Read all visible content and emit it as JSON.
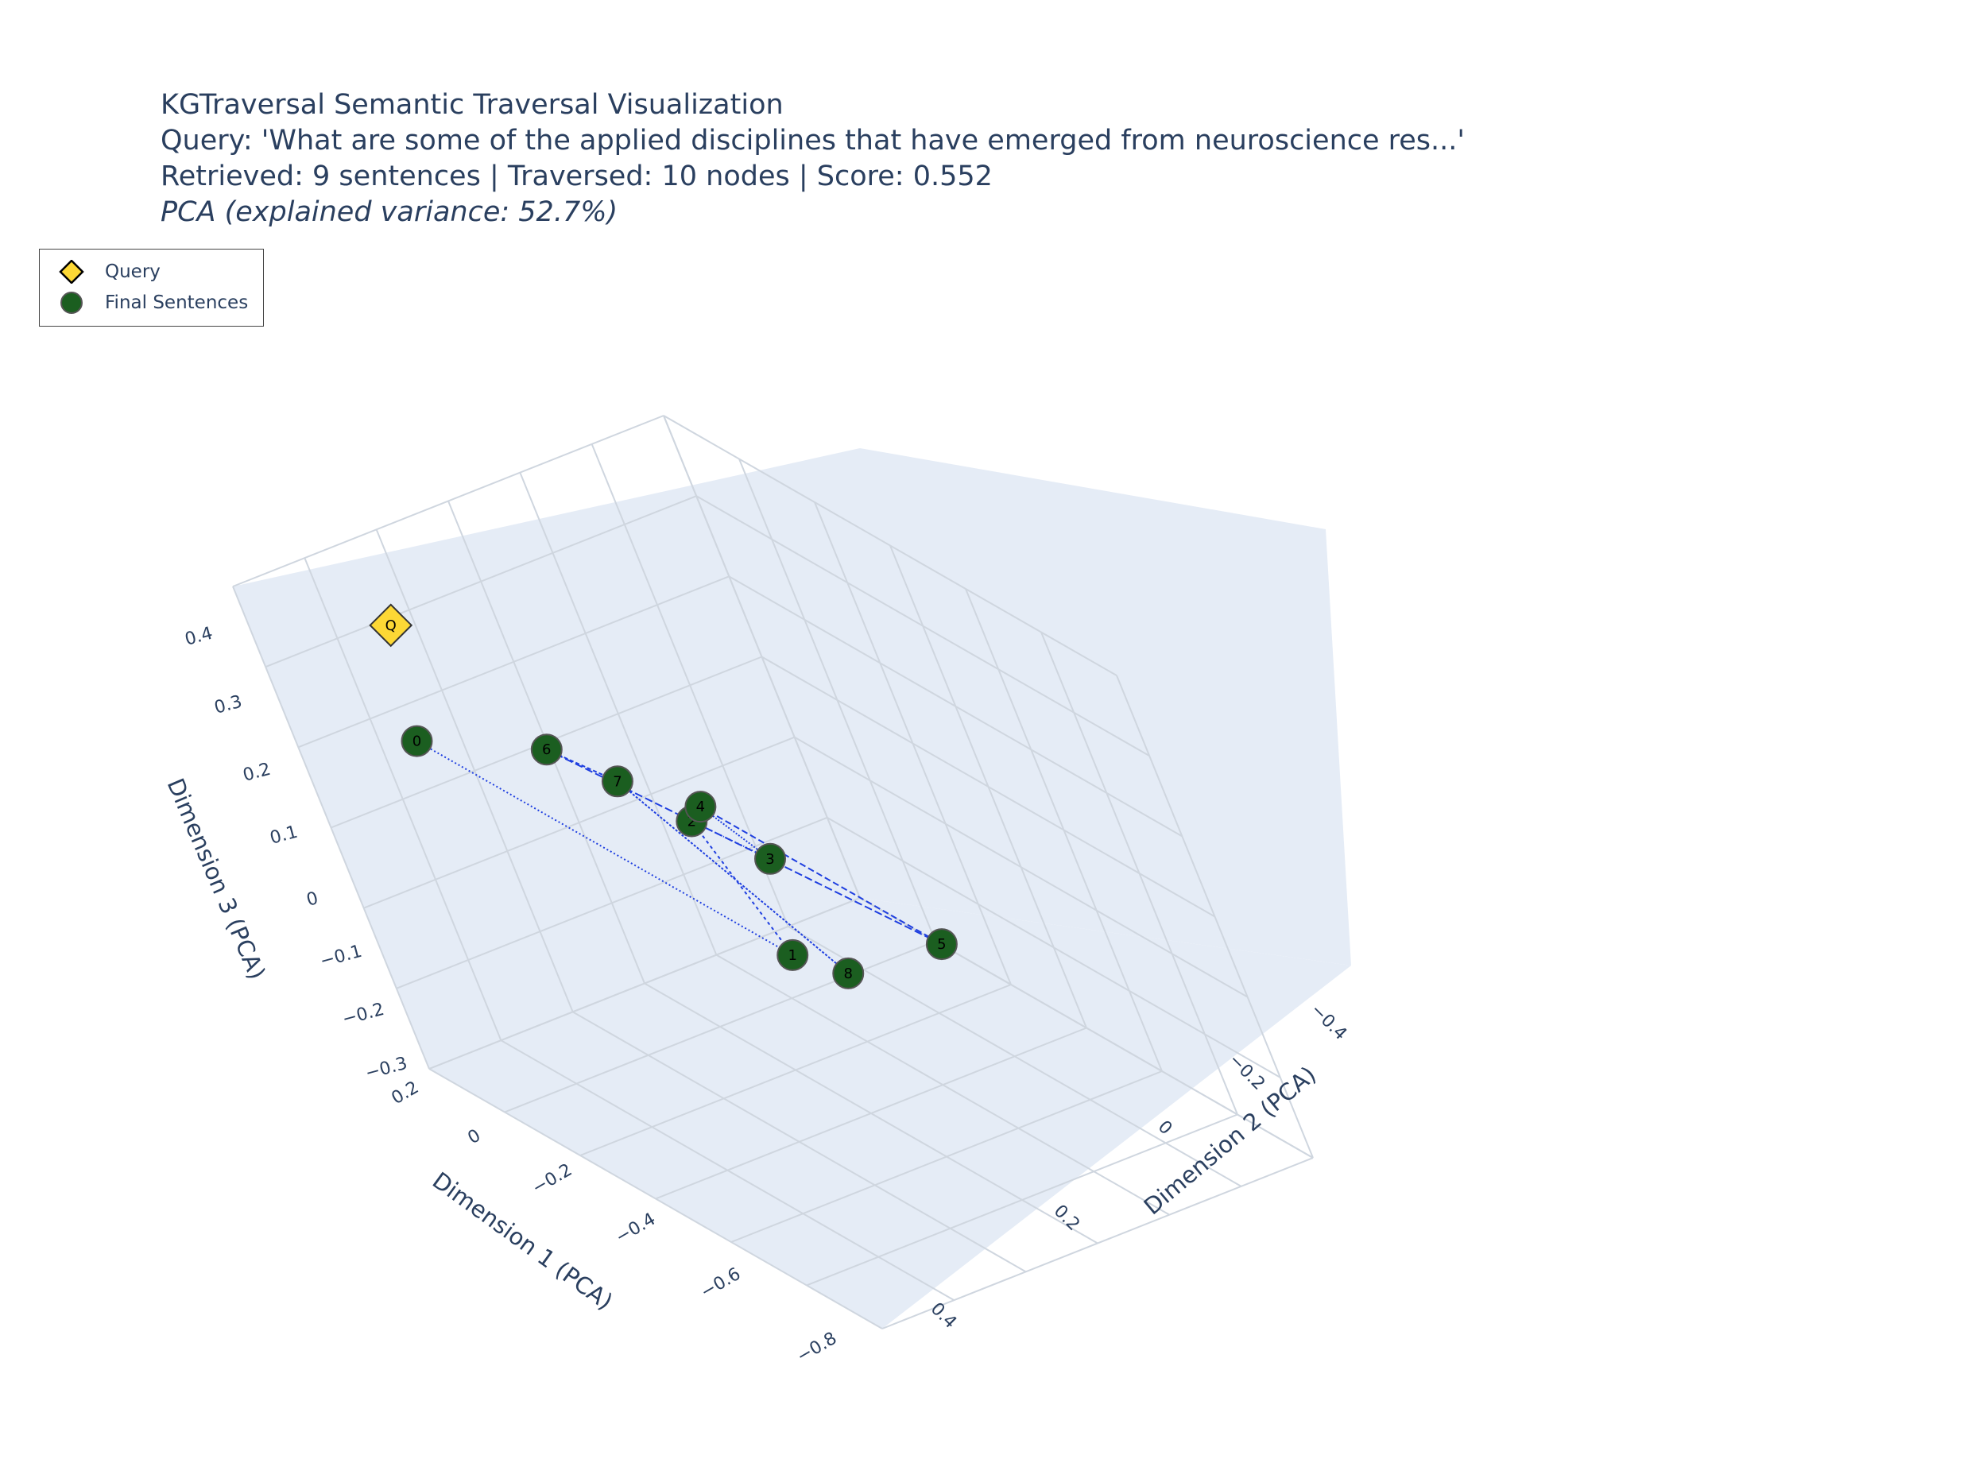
{
  "title": {
    "line1": "KGTraversal Semantic Traversal Visualization",
    "line2": "Query: 'What are some of the applied disciplines that have emerged from neuroscience res...'",
    "line3": "Retrieved: 9 sentences | Traversed: 10 nodes | Score: 0.552",
    "line4": "PCA (explained variance: 52.7%)"
  },
  "legend": {
    "items": [
      {
        "label": "Query",
        "symbol": "diamond",
        "color": "#fdd835"
      },
      {
        "label": "Final Sentences",
        "symbol": "circle",
        "color": "#1b5e20"
      }
    ]
  },
  "colors": {
    "scene_bg": "#e5ecf6",
    "grid": "#c8c8c8",
    "query": "#fdd835",
    "sentence": "#1b5e20",
    "path": "#1f3fe0",
    "text": "#2a3f5f"
  },
  "chart_data": {
    "type": "scatter3d",
    "axes": {
      "x": {
        "title": "Dimension 1 (PCA)",
        "ticks": [
          "0.2",
          "0",
          "−0.2",
          "−0.4",
          "−0.6",
          "−0.8"
        ],
        "range": [
          0.25,
          -0.85
        ]
      },
      "y": {
        "title": "Dimension 2 (PCA)",
        "ticks": [
          "−0.4",
          "−0.2",
          "0",
          "0.2",
          "0.4"
        ],
        "range": [
          -0.5,
          0.45
        ]
      },
      "z": {
        "title": "Dimension 3 (PCA)",
        "ticks": [
          "0.4",
          "0.3",
          "0.2",
          "0.1",
          "0",
          "−0.1",
          "−0.2",
          "−0.3"
        ],
        "range": [
          -0.33,
          0.45
        ]
      }
    },
    "query_point": {
      "label": "Q",
      "x": 0.05,
      "y": -0.35,
      "z": 0.42
    },
    "sentences": [
      {
        "label": "0",
        "x": -0.05,
        "y": -0.45,
        "z": 0.3
      },
      {
        "label": "1",
        "x": 0.12,
        "y": 0.2,
        "z": -0.3
      },
      {
        "label": "2",
        "x": -0.2,
        "y": -0.08,
        "z": 0.12
      },
      {
        "label": "3",
        "x": -0.3,
        "y": -0.02,
        "z": 0.08
      },
      {
        "label": "4",
        "x": -0.28,
        "y": -0.1,
        "z": 0.18
      },
      {
        "label": "5",
        "x": -0.45,
        "y": 0.15,
        "z": -0.05
      },
      {
        "label": "6",
        "x": -0.2,
        "y": -0.3,
        "z": 0.3
      },
      {
        "label": "7",
        "x": -0.35,
        "y": -0.28,
        "z": 0.3
      },
      {
        "label": "8",
        "x": -0.7,
        "y": -0.2,
        "z": 0.1
      }
    ],
    "paths": [
      {
        "from": "0",
        "to": "1"
      },
      {
        "from": "1",
        "to": "2"
      },
      {
        "from": "2",
        "to": "3"
      },
      {
        "from": "3",
        "to": "4"
      },
      {
        "from": "4",
        "to": "5"
      },
      {
        "from": "5",
        "to": "6"
      },
      {
        "from": "6",
        "to": "7"
      },
      {
        "from": "7",
        "to": "8"
      }
    ]
  }
}
